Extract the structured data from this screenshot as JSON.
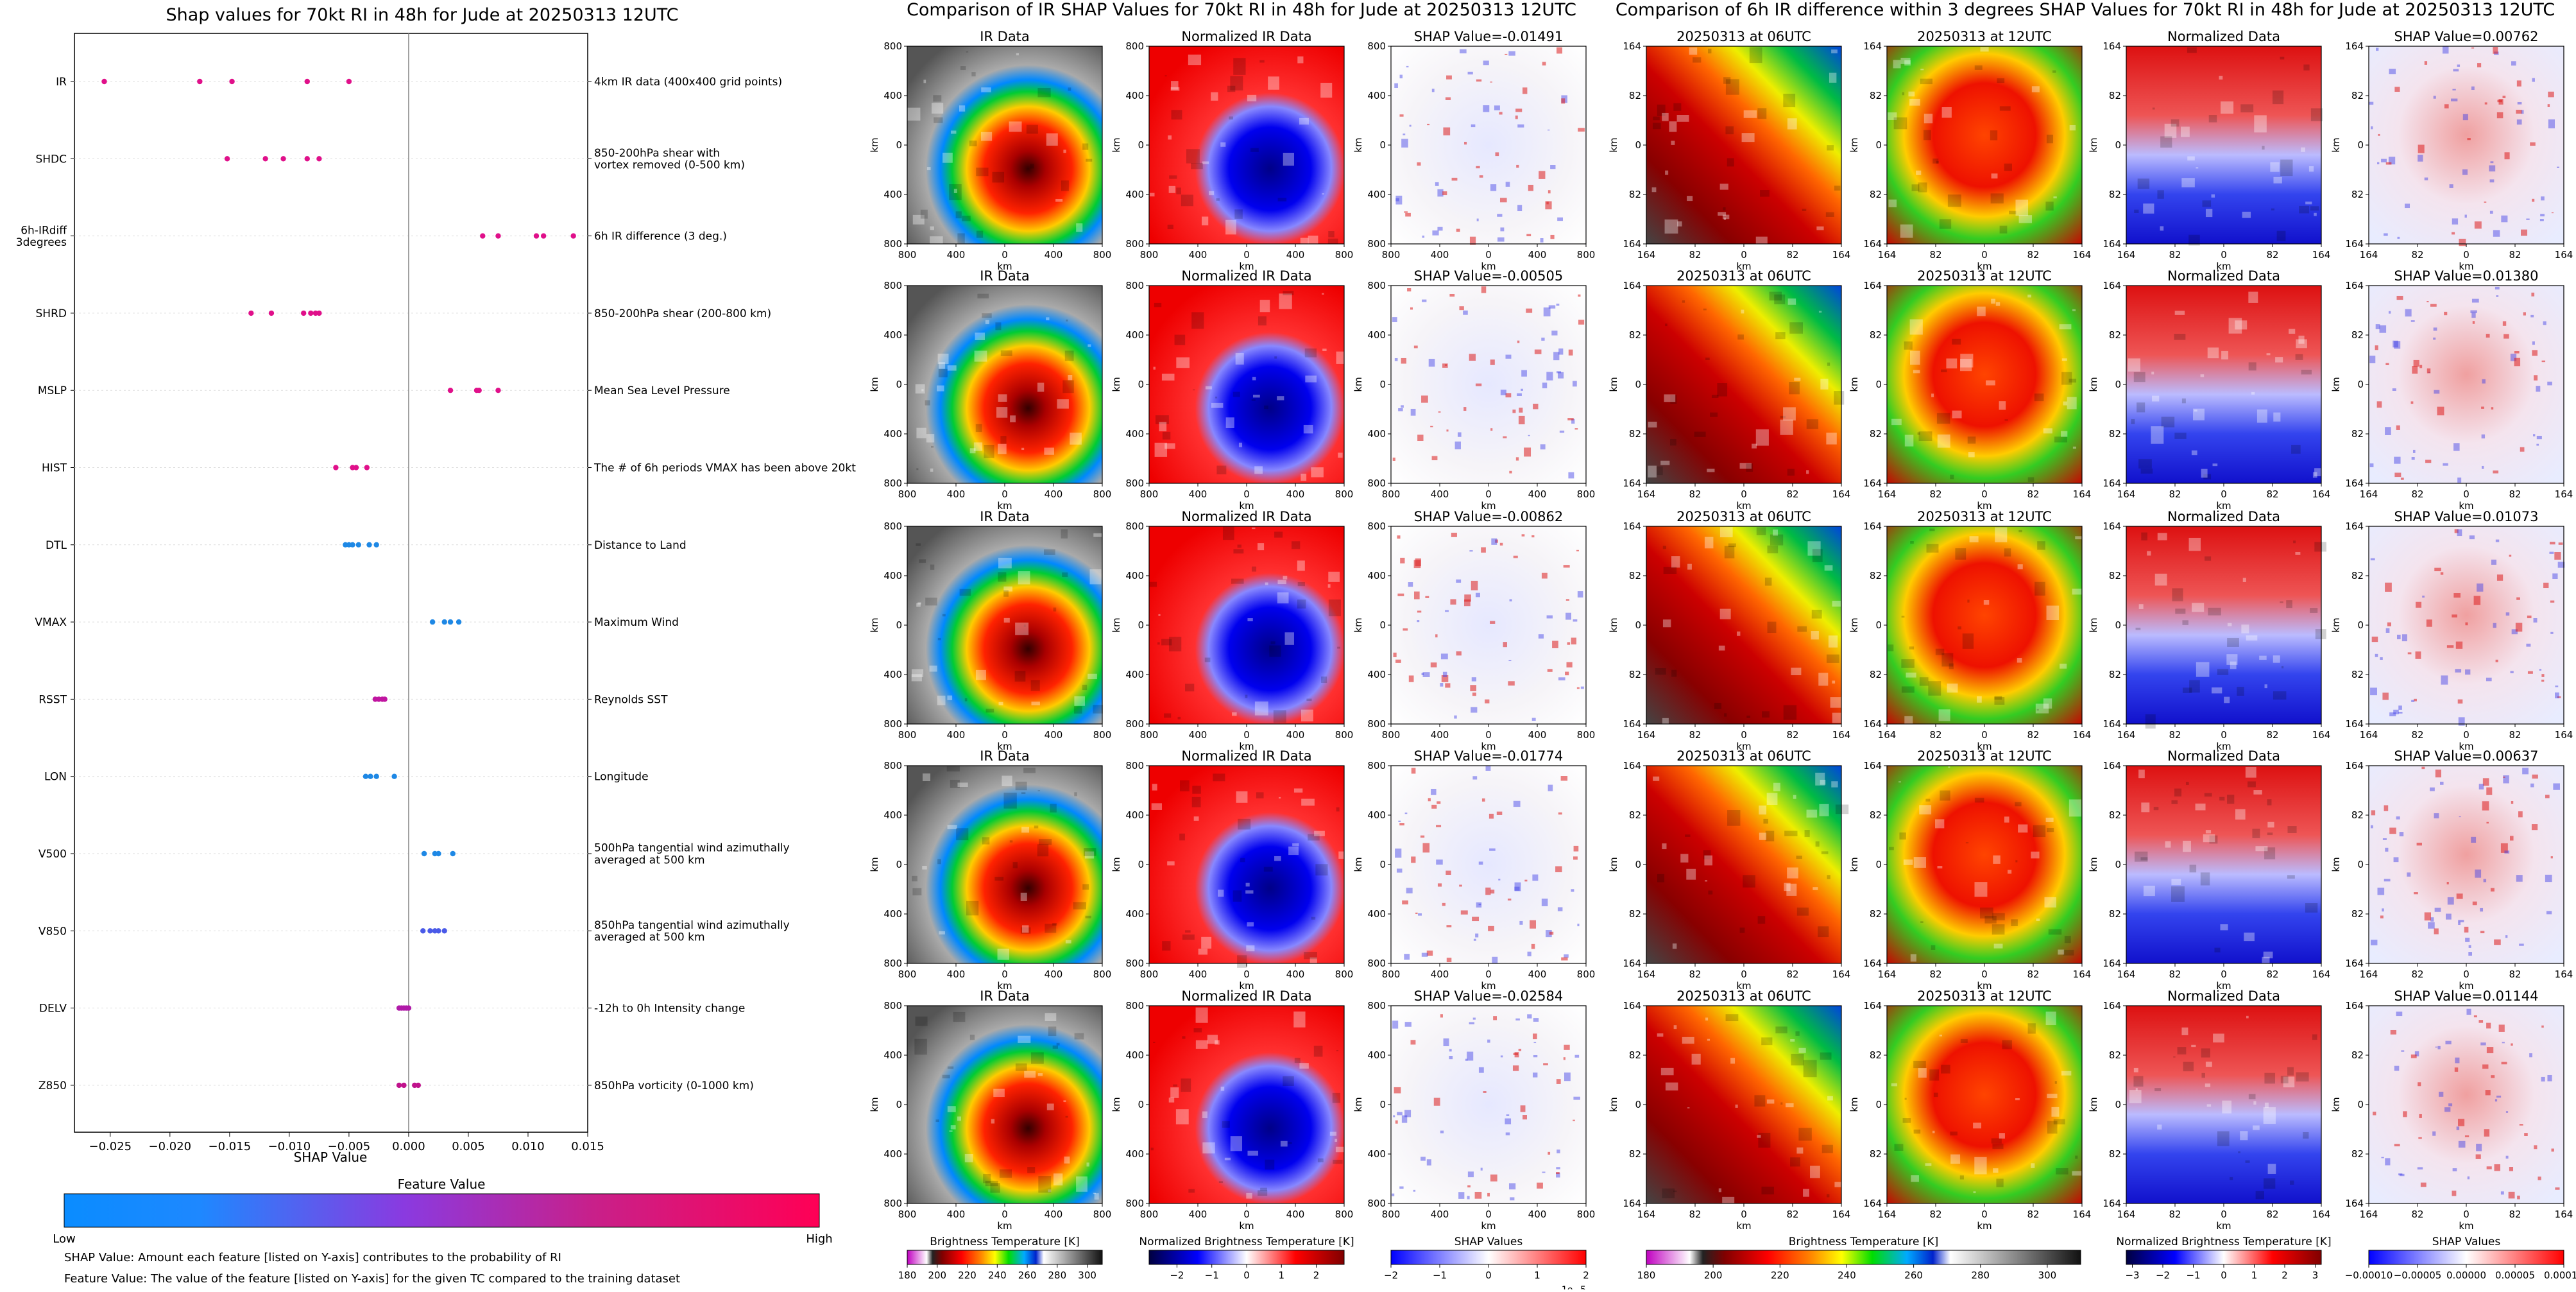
{
  "colors": {
    "feature_low": "#2196f3",
    "feature_high": "#f2005e",
    "zero_line": "#888888"
  },
  "shap_panel": {
    "title": "Shap values for 70kt RI in 48h for Jude at 20250313 12UTC",
    "xlabel": "SHAP Value",
    "colorbar_title": "Feature Value",
    "colorbar_low": "Low",
    "colorbar_high": "High",
    "note1": "SHAP Value: Amount each feature [listed on Y-axis] contributes to the probability of RI",
    "note2": "Feature Value: The value of the feature [listed on Y-axis] for the given TC compared to the training dataset"
  },
  "chart_data": [
    {
      "type": "scatter",
      "title": "Shap values for 70kt RI in 48h for Jude at 20250313 12UTC",
      "xlabel": "SHAP Value",
      "xlim": [
        -0.028,
        0.015
      ],
      "xticks": [
        "−0.025",
        "−0.020",
        "−0.015",
        "−0.010",
        "−0.005",
        "0.000",
        "0.005",
        "0.010",
        "0.015"
      ],
      "xtick_values": [
        -0.025,
        -0.02,
        -0.015,
        -0.01,
        -0.005,
        0.0,
        0.005,
        0.01,
        0.015
      ],
      "features": [
        {
          "code": "IR",
          "desc": "4km IR data (400x400 grid points)",
          "color": "#e0108a",
          "values": [
            -0.0255,
            -0.0175,
            -0.0148,
            -0.0085,
            -0.005
          ]
        },
        {
          "code": "SHDC",
          "desc": "850-200hPa shear with\nvortex removed (0-500 km)",
          "color": "#e0108a",
          "values": [
            -0.0152,
            -0.012,
            -0.0105,
            -0.0085,
            -0.0075
          ]
        },
        {
          "code": "6h-IRdiff\n3degrees",
          "desc": "6h IR difference (3 deg.)",
          "color": "#e0108a",
          "values": [
            0.0062,
            0.0075,
            0.0107,
            0.0113,
            0.0138
          ]
        },
        {
          "code": "SHRD",
          "desc": "850-200hPa shear (200-800 km)",
          "color": "#e0108a",
          "values": [
            -0.0132,
            -0.0115,
            -0.0088,
            -0.0082,
            -0.0078,
            -0.0075
          ]
        },
        {
          "code": "MSLP",
          "desc": "Mean Sea Level Pressure",
          "color": "#e0108a",
          "values": [
            0.0035,
            0.0057,
            0.0059,
            0.0075
          ]
        },
        {
          "code": "HIST",
          "desc": "The # of 6h periods VMAX has been above 20kt",
          "color": "#e0108a",
          "values": [
            -0.0061,
            -0.0047,
            -0.0044,
            -0.0035
          ]
        },
        {
          "code": "DTL",
          "desc": "Distance to Land",
          "color": "#1e88e5",
          "values": [
            -0.0053,
            -0.005,
            -0.0047,
            -0.0042,
            -0.0033,
            -0.0027
          ]
        },
        {
          "code": "VMAX",
          "desc": "Maximum Wind",
          "color": "#1e88e5",
          "values": [
            0.002,
            0.003,
            0.0035,
            0.0042
          ]
        },
        {
          "code": "RSST",
          "desc": "Reynolds SST",
          "color": "#c015a0",
          "values": [
            -0.0028,
            -0.0025,
            -0.0022,
            -0.002
          ]
        },
        {
          "code": "LON",
          "desc": "Longitude",
          "color": "#1e88e5",
          "values": [
            -0.0036,
            -0.0032,
            -0.0027,
            -0.0012
          ]
        },
        {
          "code": "V500",
          "desc": "500hPa tangential wind azimuthally\naveraged at 500 km",
          "color": "#1e88e5",
          "values": [
            0.0013,
            0.0022,
            0.0025,
            0.0037
          ]
        },
        {
          "code": "V850",
          "desc": "850hPa tangential wind azimuthally\naveraged at 500 km",
          "color": "#4a5ae8",
          "values": [
            0.0012,
            0.0018,
            0.0022,
            0.0025,
            0.003
          ]
        },
        {
          "code": "DELV",
          "desc": "-12h to 0h Intensity change",
          "color": "#b01aa8",
          "values": [
            -0.0008,
            -0.0006,
            -0.0004,
            -0.0002,
            0.0
          ]
        },
        {
          "code": "Z850",
          "desc": "850hPa vorticity (0-1000 km)",
          "color": "#c0128c",
          "values": [
            -0.0008,
            -0.0004,
            0.0005,
            0.0008
          ]
        }
      ]
    },
    {
      "type": "heatmap",
      "title": "Comparison of IR SHAP Values for 70kt RI in 48h for Jude at 20250313 12UTC",
      "column_titles": [
        "IR Data",
        "Normalized IR Data"
      ],
      "row_shap_titles": [
        "SHAP Value=-0.01491",
        "SHAP Value=-0.00505",
        "SHAP Value=-0.00862",
        "SHAP Value=-0.01774",
        "SHAP Value=-0.02584"
      ],
      "xlabel": "km",
      "ylabel": "km",
      "xticks": [
        "800",
        "400",
        "0",
        "400",
        "800"
      ],
      "yticks": [
        "800",
        "400",
        "0",
        "400",
        "800"
      ],
      "colorbars": [
        {
          "label": "Brightness Temperature [K]",
          "ticks": [
            "180",
            "200",
            "220",
            "240",
            "260",
            "280",
            "300"
          ],
          "range": [
            180,
            310
          ]
        },
        {
          "label": "Normalized Brightness Temperature [K]",
          "ticks": [
            "−2",
            "−1",
            "0",
            "1",
            "2"
          ],
          "range": [
            -2.8,
            2.8
          ]
        },
        {
          "label": "SHAP Values",
          "ticks": [
            "−2",
            "−1",
            "0",
            "1",
            "2"
          ],
          "range": [
            -2,
            2
          ],
          "offset_label": "1e−5"
        }
      ]
    },
    {
      "type": "heatmap",
      "title": "Comparison of 6h IR difference within 3 degrees SHAP Values for 70kt RI in 48h for Jude at 20250313 12UTC",
      "column_titles": [
        "20250313 at 06UTC",
        "20250313 at 12UTC",
        "Normalized Data"
      ],
      "row_shap_titles": [
        "SHAP Value=0.00762",
        "SHAP Value=0.01380",
        "SHAP Value=0.01073",
        "SHAP Value=0.00637",
        "SHAP Value=0.01144"
      ],
      "xlabel": "km",
      "ylabel": "km",
      "xticks": [
        "164",
        "82",
        "0",
        "82",
        "164"
      ],
      "yticks": [
        "164",
        "82",
        "0",
        "82",
        "164"
      ],
      "colorbars": [
        {
          "label": "Brightness Temperature [K]",
          "ticks": [
            "180",
            "200",
            "220",
            "240",
            "260",
            "280",
            "300"
          ],
          "range": [
            180,
            310
          ]
        },
        {
          "label": "Normalized Brightness Temperature [K]",
          "ticks": [
            "−3",
            "−2",
            "−1",
            "0",
            "1",
            "2",
            "3"
          ],
          "range": [
            -3.2,
            3.2
          ]
        },
        {
          "label": "SHAP Values",
          "ticks": [
            "−0.00010",
            "−0.00005",
            "0.00000",
            "0.00005",
            "0.00010"
          ],
          "range": [
            -0.0001,
            0.0001
          ]
        }
      ]
    }
  ]
}
